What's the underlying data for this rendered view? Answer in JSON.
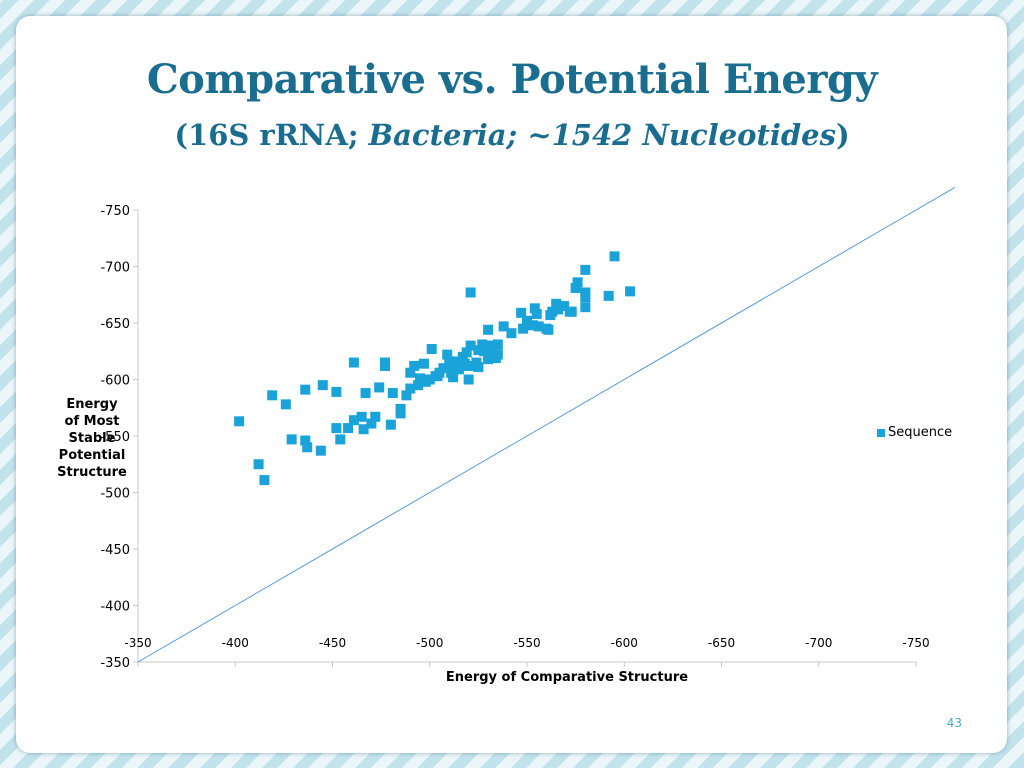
{
  "slide": {
    "title": "Comparative vs. Potential Energy",
    "subtitle_prefix": "(16S rRNA; ",
    "subtitle_italic": "Bacteria; ~1542 Nucleotides",
    "subtitle_suffix": ")",
    "page_number": "43"
  },
  "colors": {
    "accent": "#1a6d8f",
    "marker": "#1aa3d9",
    "diagonal": "#5b9bd5"
  },
  "chart_data": {
    "type": "scatter",
    "xlabel": "Energy of Comparative Structure",
    "ylabel_lines": [
      "Energy",
      "of Most",
      "Stable",
      "Potential",
      "Structure"
    ],
    "xlim": [
      -350,
      -750
    ],
    "ylim": [
      -350,
      -750
    ],
    "x_ticks": [
      "-350",
      "-400",
      "-450",
      "-500",
      "-550",
      "-600",
      "-650",
      "-700",
      "-750"
    ],
    "y_ticks": [
      "-750",
      "-700",
      "-650",
      "-600",
      "-550",
      "-500",
      "-450",
      "-400",
      "-350"
    ],
    "grid": false,
    "legend_position": "right",
    "reference_line": {
      "from": [
        -350,
        -350
      ],
      "to": [
        -770,
        -770
      ]
    },
    "series": [
      {
        "name": "Sequence",
        "marker": "square",
        "points": [
          [
            -402,
            -563
          ],
          [
            -412,
            -525
          ],
          [
            -415,
            -511
          ],
          [
            -419,
            -586
          ],
          [
            -426,
            -578
          ],
          [
            -429,
            -547
          ],
          [
            -436,
            -591
          ],
          [
            -436,
            -546
          ],
          [
            -437,
            -540
          ],
          [
            -444,
            -537
          ],
          [
            -445,
            -595
          ],
          [
            -452,
            -589
          ],
          [
            -452,
            -557
          ],
          [
            -454,
            -547
          ],
          [
            -458,
            -557
          ],
          [
            -461,
            -564
          ],
          [
            -461,
            -615
          ],
          [
            -465,
            -567
          ],
          [
            -466,
            -556
          ],
          [
            -467,
            -588
          ],
          [
            -470,
            -561
          ],
          [
            -472,
            -567
          ],
          [
            -474,
            -593
          ],
          [
            -477,
            -615
          ],
          [
            -477,
            -612
          ],
          [
            -480,
            -560
          ],
          [
            -481,
            -588
          ],
          [
            -485,
            -574
          ],
          [
            -485,
            -570
          ],
          [
            -488,
            -586
          ],
          [
            -490,
            -606
          ],
          [
            -490,
            -592
          ],
          [
            -492,
            -612
          ],
          [
            -494,
            -595
          ],
          [
            -495,
            -601
          ],
          [
            -497,
            -614
          ],
          [
            -498,
            -598
          ],
          [
            -500,
            -600
          ],
          [
            -501,
            -627
          ],
          [
            -503,
            -603
          ],
          [
            -504,
            -603
          ],
          [
            -505,
            -606
          ],
          [
            -507,
            -610
          ],
          [
            -509,
            -622
          ],
          [
            -510,
            -614
          ],
          [
            -511,
            -606
          ],
          [
            -512,
            -602
          ],
          [
            -513,
            -613
          ],
          [
            -514,
            -616
          ],
          [
            -515,
            -609
          ],
          [
            -517,
            -620
          ],
          [
            -518,
            -614
          ],
          [
            -519,
            -624
          ],
          [
            -520,
            -600
          ],
          [
            -520,
            -612
          ],
          [
            -521,
            -677
          ],
          [
            -521,
            -630
          ],
          [
            -524,
            -615
          ],
          [
            -525,
            -611
          ],
          [
            -525,
            -626
          ],
          [
            -527,
            -631
          ],
          [
            -528,
            -625
          ],
          [
            -530,
            -618
          ],
          [
            -530,
            -644
          ],
          [
            -531,
            -630
          ],
          [
            -533,
            -626
          ],
          [
            -534,
            -619
          ],
          [
            -535,
            -631
          ],
          [
            -535,
            -622
          ],
          [
            -538,
            -647
          ],
          [
            -542,
            -641
          ],
          [
            -547,
            -659
          ],
          [
            -548,
            -645
          ],
          [
            -550,
            -652
          ],
          [
            -553,
            -648
          ],
          [
            -554,
            -663
          ],
          [
            -555,
            -658
          ],
          [
            -556,
            -647
          ],
          [
            -560,
            -645
          ],
          [
            -561,
            -644
          ],
          [
            -562,
            -657
          ],
          [
            -563,
            -660
          ],
          [
            -565,
            -667
          ],
          [
            -566,
            -662
          ],
          [
            -569,
            -665
          ],
          [
            -572,
            -660
          ],
          [
            -573,
            -660
          ],
          [
            -575,
            -681
          ],
          [
            -576,
            -686
          ],
          [
            -580,
            -697
          ],
          [
            -580,
            -677
          ],
          [
            -580,
            -673
          ],
          [
            -580,
            -664
          ],
          [
            -592,
            -674
          ],
          [
            -595,
            -709
          ],
          [
            -603,
            -678
          ]
        ]
      }
    ]
  }
}
